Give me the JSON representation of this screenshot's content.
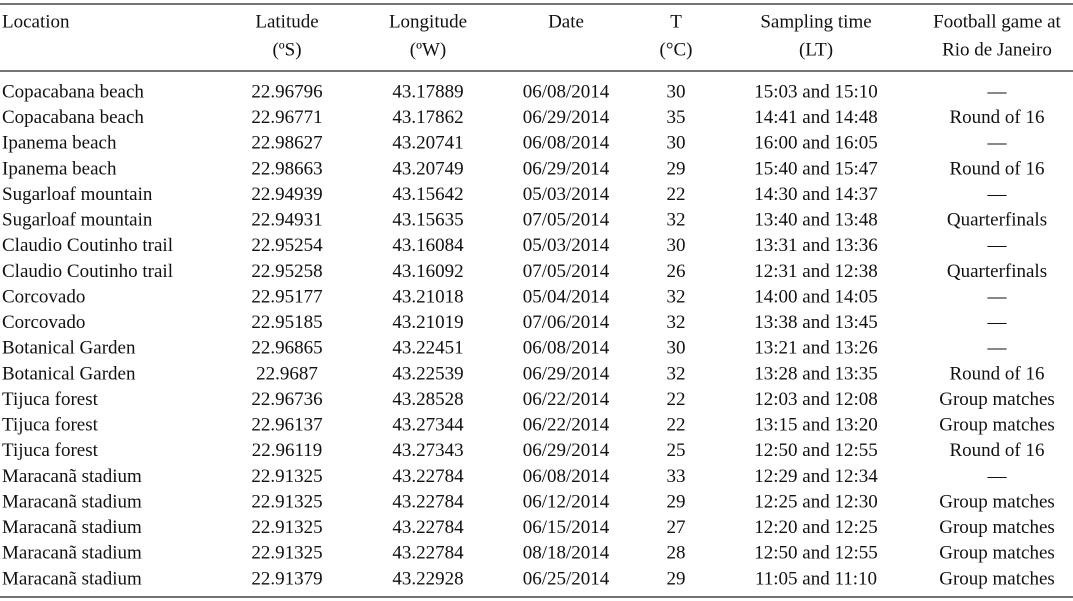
{
  "table": {
    "header": [
      [
        "Location"
      ],
      [
        "Latitude",
        "(ºS)"
      ],
      [
        "Longitude",
        "(ºW)"
      ],
      [
        "Date"
      ],
      [
        "T",
        "(°C)"
      ],
      [
        "Sampling time",
        "(LT)"
      ],
      [
        "Football game at",
        "Rio de Janeiro"
      ]
    ],
    "rows": [
      [
        "Copacabana beach",
        "22.96796",
        "43.17889",
        "06/08/2014",
        "30",
        "15:03 and 15:10",
        "—"
      ],
      [
        "Copacabana beach",
        "22.96771",
        "43.17862",
        "06/29/2014",
        "35",
        "14:41 and 14:48",
        "Round of 16"
      ],
      [
        "Ipanema beach",
        "22.98627",
        "43.20741",
        "06/08/2014",
        "30",
        "16:00 and 16:05",
        "—"
      ],
      [
        "Ipanema beach",
        "22.98663",
        "43.20749",
        "06/29/2014",
        "29",
        "15:40 and 15:47",
        "Round of 16"
      ],
      [
        "Sugarloaf mountain",
        "22.94939",
        "43.15642",
        "05/03/2014",
        "22",
        "14:30 and 14:37",
        "—"
      ],
      [
        "Sugarloaf mountain",
        "22.94931",
        "43.15635",
        "07/05/2014",
        "32",
        "13:40 and 13:48",
        "Quarterfinals"
      ],
      [
        "Claudio Coutinho trail",
        "22.95254",
        "43.16084",
        "05/03/2014",
        "30",
        "13:31 and 13:36",
        "—"
      ],
      [
        "Claudio Coutinho trail",
        "22.95258",
        "43.16092",
        "07/05/2014",
        "26",
        "12:31 and 12:38",
        "Quarterfinals"
      ],
      [
        "Corcovado",
        "22.95177",
        "43.21018",
        "05/04/2014",
        "32",
        "14:00 and 14:05",
        "—"
      ],
      [
        "Corcovado",
        "22.95185",
        "43.21019",
        "07/06/2014",
        "32",
        "13:38 and 13:45",
        "—"
      ],
      [
        "Botanical Garden",
        "22.96865",
        "43.22451",
        "06/08/2014",
        "30",
        "13:21 and 13:26",
        "—"
      ],
      [
        "Botanical Garden",
        "22.9687",
        "43.22539",
        "06/29/2014",
        "32",
        "13:28 and 13:35",
        "Round of 16"
      ],
      [
        "Tijuca forest",
        "22.96736",
        "43.28528",
        "06/22/2014",
        "22",
        "12:03 and 12:08",
        "Group matches"
      ],
      [
        "Tijuca forest",
        "22.96137",
        "43.27344",
        "06/22/2014",
        "22",
        "13:15 and 13:20",
        "Group matches"
      ],
      [
        "Tijuca forest",
        "22.96119",
        "43.27343",
        "06/29/2014",
        "25",
        "12:50 and 12:55",
        "Round of 16"
      ],
      [
        "Maracanã stadium",
        "22.91325",
        "43.22784",
        "06/08/2014",
        "33",
        "12:29 and 12:34",
        "—"
      ],
      [
        "Maracanã stadium",
        "22.91325",
        "43.22784",
        "06/12/2014",
        "29",
        "12:25 and 12:30",
        "Group matches"
      ],
      [
        "Maracanã stadium",
        "22.91325",
        "43.22784",
        "06/15/2014",
        "27",
        "12:20 and 12:25",
        "Group matches"
      ],
      [
        "Maracanã stadium",
        "22.91325",
        "43.22784",
        "08/18/2014",
        "28",
        "12:50 and 12:55",
        "Group matches"
      ],
      [
        "Maracanã stadium",
        "22.91379",
        "43.22928",
        "06/25/2014",
        "29",
        "11:05 and 11:10",
        "Group matches"
      ]
    ]
  }
}
